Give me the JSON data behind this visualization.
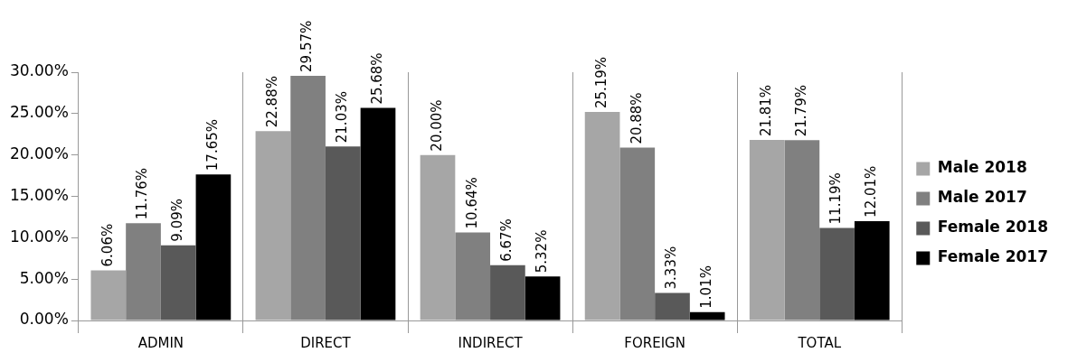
{
  "chart_data": {
    "type": "bar",
    "categories": [
      "ADMIN",
      "DIRECT",
      "INDIRECT",
      "FOREIGN",
      "TOTAL"
    ],
    "series": [
      {
        "name": "Male 2018",
        "color": "#a6a6a6",
        "values": [
          6.06,
          22.88,
          20.0,
          25.19,
          21.81
        ],
        "value_labels": [
          "6.06%",
          "22.88%",
          "20.00%",
          "25.19%",
          "21.81%"
        ]
      },
      {
        "name": "Male 2017",
        "color": "#808080",
        "values": [
          11.76,
          29.57,
          10.64,
          20.88,
          21.79
        ],
        "value_labels": [
          "11.76%",
          "29.57%",
          "10.64%",
          "20.88%",
          "21.79%"
        ]
      },
      {
        "name": "Female 2018",
        "color": "#595959",
        "values": [
          9.09,
          21.03,
          6.67,
          3.33,
          11.19
        ],
        "value_labels": [
          "9.09%",
          "21.03%",
          "6.67%",
          "3.33%",
          "11.19%"
        ]
      },
      {
        "name": "Female 2017",
        "color": "#000000",
        "values": [
          17.65,
          25.68,
          5.32,
          1.01,
          12.01
        ],
        "value_labels": [
          "17.65%",
          "25.68%",
          "5.32%",
          "1.01%",
          "12.01%"
        ]
      }
    ],
    "ylim": [
      0,
      30
    ],
    "yticks": [
      {
        "value": 0,
        "label": "0.00%"
      },
      {
        "value": 5,
        "label": "5.00%"
      },
      {
        "value": 10,
        "label": "10.00%"
      },
      {
        "value": 15,
        "label": "15.00%"
      },
      {
        "value": 20,
        "label": "20.00%"
      },
      {
        "value": 25,
        "label": "25.00%"
      },
      {
        "value": 30,
        "label": "30.00%"
      }
    ],
    "grid": "x",
    "legend": "right"
  }
}
